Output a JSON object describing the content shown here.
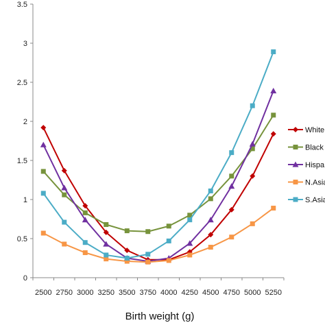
{
  "chart_data": {
    "type": "line",
    "title": "",
    "xlabel": "Birth weight (g)",
    "ylabel": "",
    "x": [
      "2500",
      "2750",
      "3000",
      "3250",
      "3500",
      "3750",
      "4000",
      "4250",
      "4500",
      "4750",
      "5000",
      "5250"
    ],
    "ylim": [
      0,
      3.5
    ],
    "yticks": [
      "0",
      "0.5",
      "1",
      "1.5",
      "2",
      "2.5",
      "3",
      "3.5"
    ],
    "grid": false,
    "legend_position": "right",
    "series": [
      {
        "name": "White",
        "color": "#C00000",
        "marker": "diamond",
        "values": [
          1.92,
          1.37,
          0.92,
          0.58,
          0.35,
          0.23,
          0.23,
          0.33,
          0.55,
          0.87,
          1.3,
          1.84
        ]
      },
      {
        "name": "Black",
        "color": "#77933C",
        "marker": "square",
        "values": [
          1.36,
          1.06,
          0.83,
          0.68,
          0.6,
          0.59,
          0.66,
          0.8,
          1.01,
          1.3,
          1.65,
          2.08
        ]
      },
      {
        "name": "Hispa",
        "color": "#7030A0",
        "marker": "triangle",
        "values": [
          1.7,
          1.15,
          0.74,
          0.43,
          0.25,
          0.21,
          0.25,
          0.44,
          0.74,
          1.17,
          1.71,
          2.39
        ]
      },
      {
        "name": "N.Asia",
        "color": "#F79646",
        "marker": "square",
        "values": [
          0.57,
          0.43,
          0.32,
          0.24,
          0.21,
          0.2,
          0.22,
          0.29,
          0.39,
          0.52,
          0.69,
          0.89
        ]
      },
      {
        "name": "S.Asia",
        "color": "#4BACC6",
        "marker": "square",
        "values": [
          1.08,
          0.71,
          0.45,
          0.29,
          0.25,
          0.3,
          0.47,
          0.74,
          1.11,
          1.6,
          2.2,
          2.89
        ]
      }
    ]
  }
}
